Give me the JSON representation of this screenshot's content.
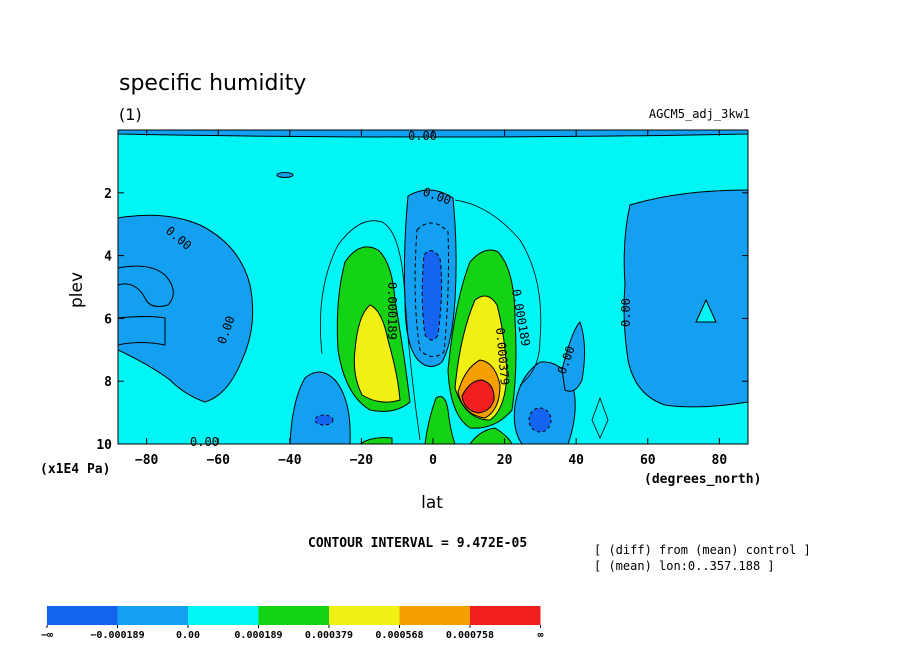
{
  "title": "specific humidity",
  "subtitle_left": "(1)",
  "subtitle_right": "AGCM5_adj_3kw1",
  "contour_interval": "CONTOUR INTERVAL = 9.472E-05",
  "notes": [
    "[ (diff) from (mean) control ]",
    "[ (mean) lon:0..357.188 ]"
  ],
  "y_unit": "(x1E4 Pa)",
  "x_unit": "(degrees_north)",
  "contour_labels": [
    "0.00",
    "0.00",
    "0.00",
    "0.00",
    "0.00",
    "0.00",
    "0.00",
    "0.000189",
    "0.000189",
    "0.000379"
  ],
  "colors": {
    "c1": "#1464f0",
    "c2": "#14a0f0",
    "c3": "#00f5f5",
    "c4": "#14d214",
    "c5": "#f0f014",
    "c6": "#f5a000",
    "c7": "#f01e1e"
  },
  "chart_data": {
    "type": "heatmap",
    "subtype": "filled-contour",
    "title": "specific humidity",
    "xlabel": "lat",
    "ylabel": "plev",
    "xlim": [
      -88,
      88
    ],
    "ylim": [
      10,
      0
    ],
    "xticks": [
      -80,
      -60,
      -40,
      -20,
      0,
      20,
      40,
      60,
      80
    ],
    "yticks": [
      2,
      4,
      6,
      8,
      10
    ],
    "contour_interval": 9.472e-05,
    "colorbar": {
      "levels": [
        "−∞",
        "−0.000189",
        "0.00",
        "0.000189",
        "0.000379",
        "0.000568",
        "0.000758",
        "∞"
      ],
      "colors": [
        "#1464f0",
        "#14a0f0",
        "#00f5f5",
        "#14d214",
        "#f0f014",
        "#f5a000",
        "#f01e1e"
      ]
    }
  }
}
